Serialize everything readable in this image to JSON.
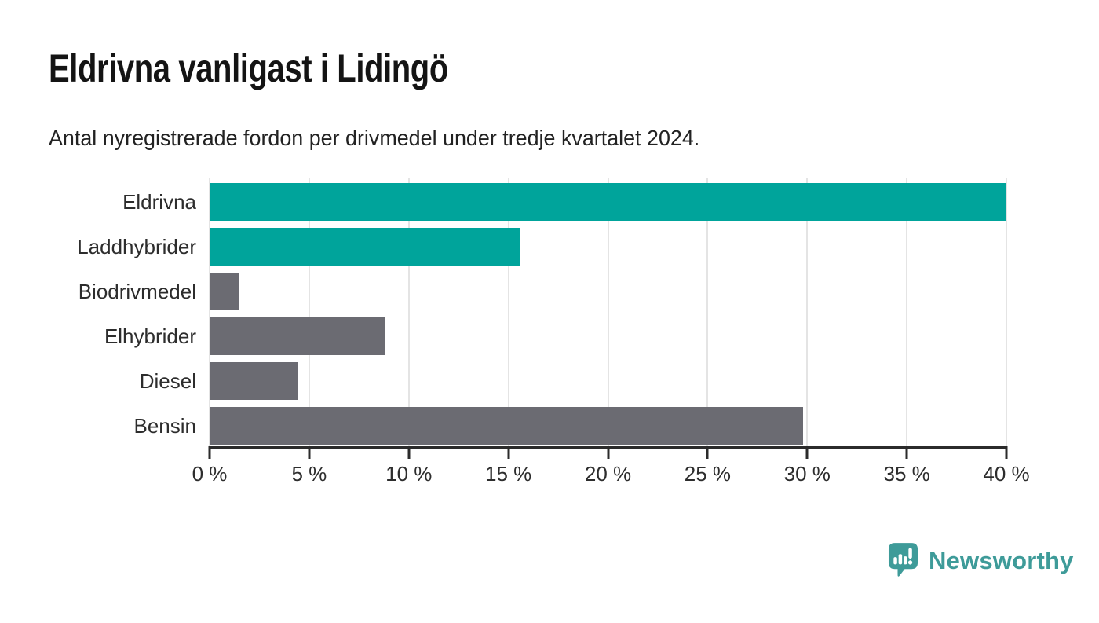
{
  "header": {
    "title": "Eldrivna vanligast i Lidingö",
    "subtitle": "Antal nyregistrerade fordon per drivmedel under tredje kvartalet 2024."
  },
  "chart_data": {
    "type": "bar",
    "orientation": "horizontal",
    "title": "Eldrivna vanligast i Lidingö",
    "subtitle": "Antal nyregistrerade fordon per drivmedel under tredje kvartalet 2024.",
    "categories": [
      "Eldrivna",
      "Laddhybrider",
      "Biodrivmedel",
      "Elhybrider",
      "Diesel",
      "Bensin"
    ],
    "values": [
      40.0,
      15.6,
      1.5,
      8.8,
      4.4,
      29.8
    ],
    "unit": "%",
    "bar_colors": [
      "#00a49b",
      "#00a49b",
      "#6b6b72",
      "#6b6b72",
      "#6b6b72",
      "#6b6b72"
    ],
    "xlabel": "",
    "ylabel": "",
    "xlim": [
      0,
      40
    ],
    "x_tick_values": [
      0,
      5,
      10,
      15,
      20,
      25,
      30,
      35,
      40
    ],
    "x_ticks": [
      "0 %",
      "5 %",
      "10 %",
      "15 %",
      "20 %",
      "25 %",
      "30 %",
      "35 %",
      "40 %"
    ],
    "grid": "vertical-light-gridlines-behind-bars",
    "legend": "none"
  },
  "branding": {
    "logo_text": "Newsworthy",
    "logo_icon": "speech-bubble-bar-chart-exclamation",
    "logo_color": "#3e9b99"
  },
  "colors": {
    "accent_teal": "#00a49b",
    "bar_gray": "#6b6b72",
    "axis_line": "#2b2b2b",
    "gridline": "#e4e4e4",
    "title_text": "#141414",
    "label_text": "#2d2d2d",
    "background": "#ffffff"
  }
}
